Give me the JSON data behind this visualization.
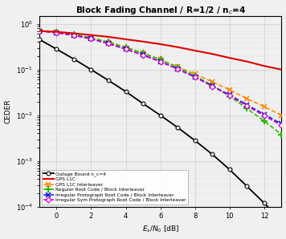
{
  "title": "Block Fading Channel / R=1/2 / n_c=4",
  "xlabel": "E_s/N_0 [dB]",
  "ylabel": "CEDER",
  "xlim": [
    -1,
    13
  ],
  "ylim": [
    0.0001,
    1.5
  ],
  "x_outage": [
    -1,
    0,
    1,
    2,
    3,
    4,
    5,
    6,
    7,
    8,
    9,
    10,
    11,
    12,
    13
  ],
  "outage_bound": [
    0.46,
    0.28,
    0.17,
    0.1,
    0.058,
    0.033,
    0.018,
    0.01,
    0.0054,
    0.0028,
    0.0014,
    0.00065,
    0.00028,
    0.00012,
    5e-05
  ],
  "x_gps": [
    -1,
    0,
    1,
    2,
    3,
    4,
    5,
    6,
    7,
    8,
    9,
    10,
    11,
    12,
    13
  ],
  "gps_l1c": [
    0.7,
    0.67,
    0.62,
    0.57,
    0.52,
    0.46,
    0.41,
    0.36,
    0.31,
    0.26,
    0.22,
    0.18,
    0.15,
    0.12,
    0.1
  ],
  "x_interleaver": [
    -1,
    0,
    1,
    2,
    3,
    4,
    5,
    6,
    7,
    8,
    9,
    10,
    11,
    12,
    13
  ],
  "gps_l1c_interleaver": [
    0.7,
    0.65,
    0.57,
    0.48,
    0.39,
    0.3,
    0.23,
    0.165,
    0.115,
    0.08,
    0.054,
    0.036,
    0.023,
    0.0155,
    0.01
  ],
  "x_regular": [
    -1,
    0,
    1,
    2,
    3,
    4,
    5,
    6,
    7,
    8,
    9,
    10,
    11,
    12,
    13
  ],
  "regular_root": [
    0.72,
    0.67,
    0.59,
    0.5,
    0.4,
    0.31,
    0.23,
    0.165,
    0.112,
    0.073,
    0.045,
    0.026,
    0.014,
    0.0075,
    0.0038
  ],
  "x_irreg_proto": [
    -1,
    0,
    1,
    2,
    3,
    4,
    5,
    6,
    7,
    8,
    9,
    10,
    11,
    12,
    13
  ],
  "irregular_proto": [
    0.7,
    0.64,
    0.56,
    0.47,
    0.37,
    0.28,
    0.21,
    0.15,
    0.103,
    0.069,
    0.044,
    0.028,
    0.017,
    0.0105,
    0.0065
  ],
  "x_irreg_sym": [
    -1,
    0,
    1,
    2,
    3,
    4,
    5,
    6,
    7,
    8,
    9,
    10,
    11,
    12,
    13
  ],
  "irregular_sym": [
    0.7,
    0.64,
    0.56,
    0.47,
    0.37,
    0.28,
    0.205,
    0.148,
    0.102,
    0.068,
    0.043,
    0.027,
    0.016,
    0.0098,
    0.006
  ],
  "bg_color": "#f0f0f0",
  "colors": {
    "outage": "#000000",
    "gps_l1c": "#dd0000",
    "gps_interleaver": "#ff8800",
    "regular_root": "#22bb00",
    "irregular_proto": "#1111dd",
    "irregular_sym": "#cc00cc"
  },
  "legend_labels": {
    "outage": "Outage Bound n_c=4",
    "gps_l1c": "GPS L1C",
    "gps_interleaver": "GPS L1C Interleaver",
    "regular_root": "Regular Root Code / Block Interleaver",
    "irregular_proto": "Irregular Protograph Root Code / Block Interleaver",
    "irregular_sym": "Irregular Sym Protograph Root Code / Block Interleaver"
  }
}
